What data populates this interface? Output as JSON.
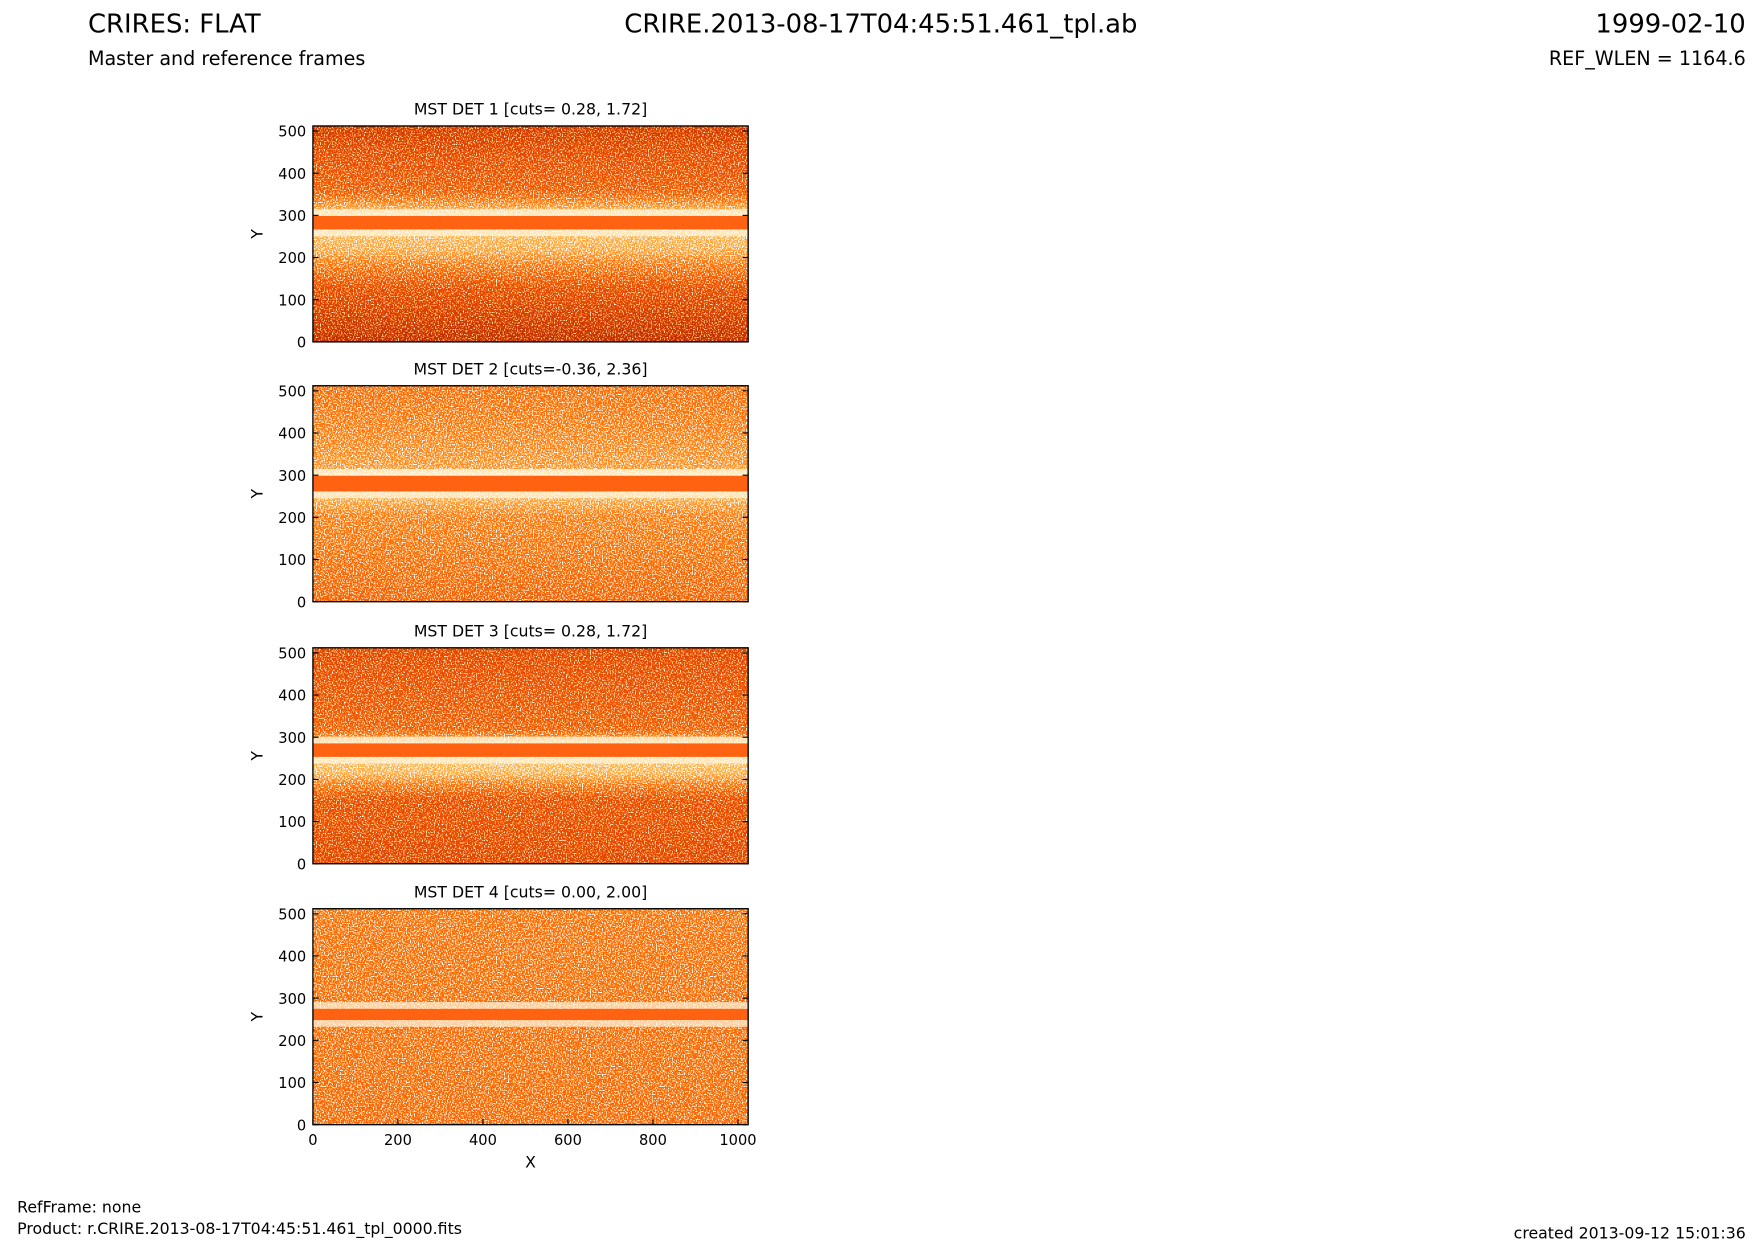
{
  "header": {
    "title": "CRIRES: FLAT",
    "subtitle": "Master and reference frames",
    "file": "CRIRE.2013-08-17T04:45:51.461_tpl.ab",
    "date": "1999-02-10",
    "ref_wlen": "REF_WLEN = 1164.6"
  },
  "chart_data": [
    {
      "type": "image",
      "title": "MST DET 1 [cuts= 0.28, 1.72]",
      "ylabel": "Y",
      "xlim": [
        0,
        1024
      ],
      "ylim": [
        0,
        512
      ],
      "yticks": [
        0,
        100,
        200,
        300,
        400,
        500
      ]
    },
    {
      "type": "image",
      "title": "MST DET 2 [cuts=-0.36, 2.36]",
      "ylabel": "Y",
      "xlim": [
        0,
        1024
      ],
      "ylim": [
        0,
        512
      ],
      "yticks": [
        0,
        100,
        200,
        300,
        400,
        500
      ]
    },
    {
      "type": "image",
      "title": "MST DET 3 [cuts= 0.28, 1.72]",
      "ylabel": "Y",
      "xlim": [
        0,
        1024
      ],
      "ylim": [
        0,
        512
      ],
      "yticks": [
        0,
        100,
        200,
        300,
        400,
        500
      ]
    },
    {
      "type": "image",
      "title": "MST DET 4 [cuts= 0.00, 2.00]",
      "ylabel": "Y",
      "xlabel": "X",
      "xlim": [
        0,
        1024
      ],
      "ylim": [
        0,
        512
      ],
      "yticks": [
        0,
        100,
        200,
        300,
        400,
        500
      ],
      "xticks": [
        0,
        200,
        400,
        600,
        800,
        1000
      ]
    }
  ],
  "footer": {
    "refframe": "RefFrame: none",
    "product": "Product: r.CRIRE.2013-08-17T04:45:51.461_tpl_0000.fits",
    "created": "created 2013-09-12 15:01:36"
  }
}
